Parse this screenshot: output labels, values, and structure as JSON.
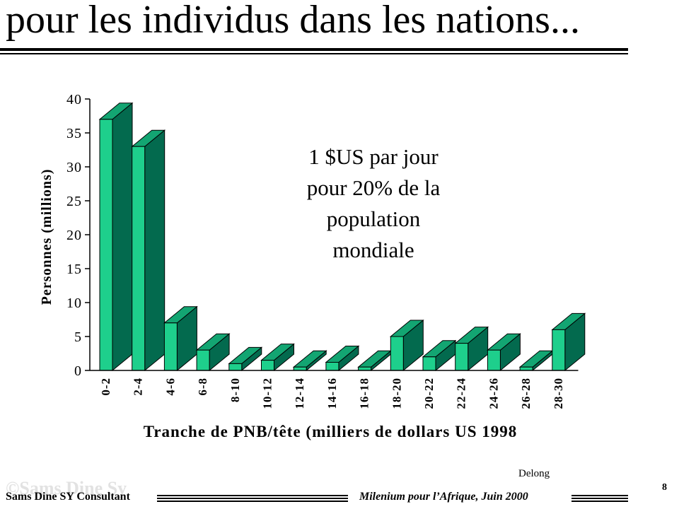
{
  "slide": {
    "title": "pour les individus dans les nations...",
    "annotation_lines": [
      "1 $US  par jour",
      "pour 20% de la",
      "population",
      "mondiale"
    ],
    "credit": "Delong",
    "page_number": "8",
    "footer_left": "Sams Dine SY Consultant",
    "footer_right": "Milenium pour l’Afrique, Juin 2000",
    "watermark": "©Sams Dine Sy"
  },
  "colors": {
    "bar_front": "#1ecf8c",
    "bar_side": "#036a4e",
    "bar_top": "#13a572",
    "outline": "#000000"
  },
  "chart_data": {
    "type": "bar",
    "title": "",
    "xlabel": "Tranche de PNB/tête (milliers de dollars US 1998",
    "ylabel": "Personnes (millions)",
    "categories": [
      "0-2",
      "2-4",
      "4-6",
      "6-8",
      "8-10",
      "10-12",
      "12-14",
      "14-16",
      "16-18",
      "18-20",
      "20-22",
      "22-24",
      "24-26",
      "26-28",
      "28-30"
    ],
    "values": [
      37,
      33,
      7,
      3,
      1,
      1.5,
      0.5,
      1.2,
      0.5,
      5,
      2,
      4,
      3,
      0.5,
      6
    ],
    "ylim": [
      0,
      40
    ],
    "yticks": [
      0,
      5,
      10,
      15,
      20,
      25,
      30,
      35,
      40
    ],
    "style": "3d-bar",
    "grid": false,
    "legend": "none"
  }
}
